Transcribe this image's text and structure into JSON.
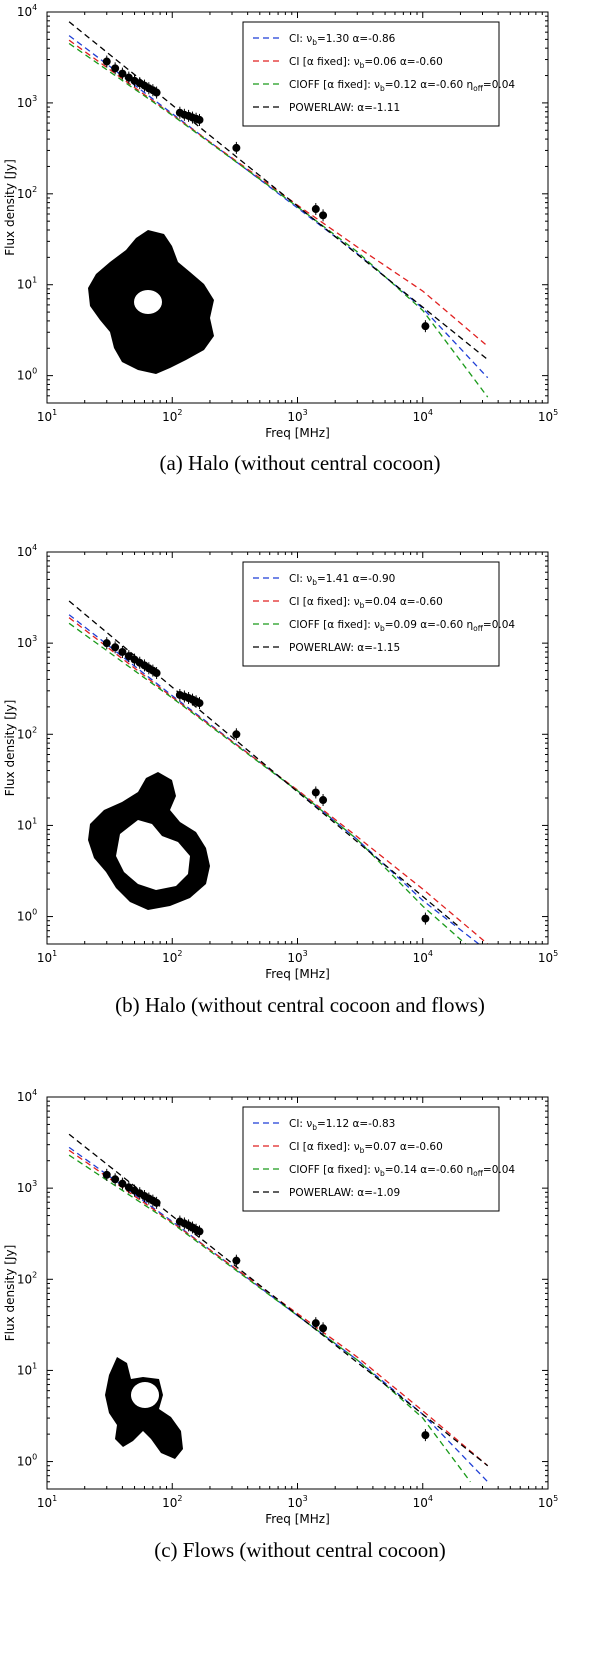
{
  "figure": {
    "panels": [
      {
        "id": "a",
        "caption": "(a)  Halo (without central cocoon)",
        "inset_shape": "halo-blob-with-hole"
      },
      {
        "id": "b",
        "caption": "(b)  Halo (without central cocoon and flows)",
        "inset_shape": "halo-ring-blob"
      },
      {
        "id": "c",
        "caption": "(c)  Flows (without central cocoon)",
        "inset_shape": "flows-blob"
      }
    ]
  },
  "colors": {
    "ci": "#1f3fd6",
    "ci_fixed": "#e02020",
    "cioff": "#1a9a1a",
    "powerlaw": "#000000",
    "points": "#000000",
    "inset": "#000000"
  },
  "chart_data": [
    {
      "type": "line",
      "title": "",
      "xlabel": "Freq [MHz]",
      "ylabel": "Flux density [Jy]",
      "xscale": "log",
      "yscale": "log",
      "xlim": [
        10,
        100000
      ],
      "ylim": [
        0.5,
        10000
      ],
      "x_ticks": [
        {
          "value": 10,
          "base": "10",
          "exp": "1"
        },
        {
          "value": 100,
          "base": "10",
          "exp": "2"
        },
        {
          "value": 1000,
          "base": "10",
          "exp": "3"
        },
        {
          "value": 10000,
          "base": "10",
          "exp": "4"
        },
        {
          "value": 100000,
          "base": "10",
          "exp": "5"
        }
      ],
      "y_ticks": [
        {
          "value": 1,
          "base": "10",
          "exp": "0"
        },
        {
          "value": 10,
          "base": "10",
          "exp": "1"
        },
        {
          "value": 100,
          "base": "10",
          "exp": "2"
        },
        {
          "value": 1000,
          "base": "10",
          "exp": "3"
        },
        {
          "value": 10000,
          "base": "10",
          "exp": "4"
        }
      ],
      "legend_position": "top-right",
      "series": [
        {
          "name": "CI: νb=1.30 α=-0.86",
          "label_parts": [
            "CI: ",
            "ν",
            "b",
            "=1.30 α=-0.86"
          ],
          "key": "ci",
          "model": "CI",
          "x": [
            15,
            100,
            1000,
            3000,
            10000,
            33000
          ],
          "y": [
            5500,
            760,
            70,
            22,
            5.5,
            0.95
          ]
        },
        {
          "name": "CI [α fixed]: νb=0.06 α=-0.60",
          "label_parts": [
            "CI [α fixed]: ",
            "ν",
            "b",
            "=0.06 α=-0.60"
          ],
          "key": "ci_fixed",
          "model": "CI",
          "x": [
            15,
            100,
            1000,
            3000,
            10000,
            33000
          ],
          "y": [
            4900,
            740,
            75,
            26,
            8.5,
            2.1
          ]
        },
        {
          "name": "CIOFF [α fixed]: νb=0.12 α=-0.60 ηoff=0.04",
          "label_parts": [
            "CIOFF [α fixed]: ",
            "ν",
            "b",
            "=0.12 α=-0.60 ",
            "η",
            "off",
            "=0.04"
          ],
          "key": "cioff",
          "model": "CIOFF",
          "x": [
            15,
            100,
            1000,
            3000,
            10000,
            33000
          ],
          "y": [
            4500,
            730,
            72,
            23,
            5.2,
            0.58
          ]
        },
        {
          "name": "POWERLAW: α=-1.11",
          "label_parts": [
            "POWERLAW: α=-1.11"
          ],
          "key": "powerlaw",
          "model": "PL",
          "x": [
            15,
            33000
          ],
          "y": [
            7800,
            1.5
          ]
        }
      ],
      "data_points": {
        "x": [
          30,
          35,
          40,
          45,
          50,
          55,
          60,
          65,
          70,
          75,
          115,
          125,
          135,
          145,
          155,
          165,
          325,
          1400,
          1600,
          10500
        ],
        "y": [
          2850,
          2400,
          2100,
          1900,
          1750,
          1650,
          1550,
          1450,
          1380,
          1300,
          780,
          740,
          720,
          690,
          670,
          650,
          320,
          68,
          58,
          3.5
        ]
      }
    },
    {
      "type": "line",
      "title": "",
      "xlabel": "Freq [MHz]",
      "ylabel": "Flux density [Jy]",
      "xscale": "log",
      "yscale": "log",
      "xlim": [
        10,
        100000
      ],
      "ylim": [
        0.5,
        10000
      ],
      "x_ticks": [
        {
          "value": 10,
          "base": "10",
          "exp": "1"
        },
        {
          "value": 100,
          "base": "10",
          "exp": "2"
        },
        {
          "value": 1000,
          "base": "10",
          "exp": "3"
        },
        {
          "value": 10000,
          "base": "10",
          "exp": "4"
        },
        {
          "value": 100000,
          "base": "10",
          "exp": "5"
        }
      ],
      "y_ticks": [
        {
          "value": 1,
          "base": "10",
          "exp": "0"
        },
        {
          "value": 10,
          "base": "10",
          "exp": "1"
        },
        {
          "value": 100,
          "base": "10",
          "exp": "2"
        },
        {
          "value": 1000,
          "base": "10",
          "exp": "3"
        },
        {
          "value": 10000,
          "base": "10",
          "exp": "4"
        }
      ],
      "legend_position": "top-right",
      "series": [
        {
          "name": "CI: νb=1.41 α=-0.90",
          "label_parts": [
            "CI: ",
            "ν",
            "b",
            "=1.41 α=-0.90"
          ],
          "key": "ci",
          "model": "CI",
          "x": [
            15,
            100,
            1000,
            3000,
            10000,
            28000
          ],
          "y": [
            2050,
            265,
            24,
            7,
            1.5,
            0.5
          ]
        },
        {
          "name": "CI [α fixed]: νb=0.04 α=-0.60",
          "label_parts": [
            "CI [α fixed]: ",
            "ν",
            "b",
            "=0.04 α=-0.60"
          ],
          "key": "ci_fixed",
          "model": "CI",
          "x": [
            15,
            100,
            1000,
            3000,
            10000,
            33000
          ],
          "y": [
            1900,
            255,
            24.5,
            7.5,
            2.0,
            0.5
          ]
        },
        {
          "name": "CIOFF [α fixed]: νb=0.09 α=-0.60 ηoff=0.04",
          "label_parts": [
            "CIOFF [α fixed]: ",
            "ν",
            "b",
            "=0.09 α=-0.60 ",
            "η",
            "off",
            "=0.04"
          ],
          "key": "cioff",
          "model": "CIOFF",
          "x": [
            15,
            100,
            1000,
            3000,
            10000,
            22000
          ],
          "y": [
            1650,
            250,
            24,
            7,
            1.3,
            0.5
          ]
        },
        {
          "name": "POWERLAW: α=-1.15",
          "label_parts": [
            "POWERLAW: α=-1.15"
          ],
          "key": "powerlaw",
          "model": "PL",
          "x": [
            15,
            20000
          ],
          "y": [
            2900,
            0.75
          ]
        }
      ],
      "data_points": {
        "x": [
          30,
          35,
          40,
          45,
          50,
          55,
          60,
          65,
          70,
          75,
          115,
          125,
          135,
          145,
          155,
          165,
          325,
          1400,
          1600,
          10500
        ],
        "y": [
          1000,
          900,
          800,
          720,
          660,
          610,
          570,
          530,
          500,
          470,
          270,
          260,
          250,
          240,
          230,
          220,
          100,
          23,
          19,
          0.95
        ]
      }
    },
    {
      "type": "line",
      "title": "",
      "xlabel": "Freq [MHz]",
      "ylabel": "Flux density [Jy]",
      "xscale": "log",
      "yscale": "log",
      "xlim": [
        10,
        100000
      ],
      "ylim": [
        0.5,
        10000
      ],
      "x_ticks": [
        {
          "value": 10,
          "base": "10",
          "exp": "1"
        },
        {
          "value": 100,
          "base": "10",
          "exp": "2"
        },
        {
          "value": 1000,
          "base": "10",
          "exp": "3"
        },
        {
          "value": 10000,
          "base": "10",
          "exp": "4"
        },
        {
          "value": 100000,
          "base": "10",
          "exp": "5"
        }
      ],
      "y_ticks": [
        {
          "value": 1,
          "base": "10",
          "exp": "0"
        },
        {
          "value": 10,
          "base": "10",
          "exp": "1"
        },
        {
          "value": 100,
          "base": "10",
          "exp": "2"
        },
        {
          "value": 1000,
          "base": "10",
          "exp": "3"
        },
        {
          "value": 10000,
          "base": "10",
          "exp": "4"
        }
      ],
      "legend_position": "top-right",
      "series": [
        {
          "name": "CI: νb=1.12 α=-0.83",
          "label_parts": [
            "CI: ",
            "ν",
            "b",
            "=1.12 α=-0.83"
          ],
          "key": "ci",
          "model": "CI",
          "x": [
            15,
            100,
            1000,
            3000,
            10000,
            33000
          ],
          "y": [
            2800,
            430,
            40,
            13,
            3.3,
            0.6
          ]
        },
        {
          "name": "CI [α fixed]: νb=0.07 α=-0.60",
          "label_parts": [
            "CI [α fixed]: ",
            "ν",
            "b",
            "=0.07 α=-0.60"
          ],
          "key": "ci_fixed",
          "model": "CI",
          "x": [
            15,
            100,
            1000,
            3000,
            10000,
            33000
          ],
          "y": [
            2600,
            420,
            42,
            14,
            3.6,
            0.9
          ]
        },
        {
          "name": "CIOFF [α fixed]: νb=0.14 α=-0.60 ηoff=0.04",
          "label_parts": [
            "CIOFF [α fixed]: ",
            "ν",
            "b",
            "=0.14 α=-0.60 ",
            "η",
            "off",
            "=0.04"
          ],
          "key": "cioff",
          "model": "CIOFF",
          "x": [
            15,
            100,
            1000,
            3000,
            10000,
            24000
          ],
          "y": [
            2300,
            410,
            40,
            13,
            3.0,
            0.6
          ]
        },
        {
          "name": "POWERLAW: α=-1.09",
          "label_parts": [
            "POWERLAW: α=-1.09"
          ],
          "key": "powerlaw",
          "model": "PL",
          "x": [
            15,
            33000
          ],
          "y": [
            3900,
            0.9
          ]
        }
      ],
      "data_points": {
        "x": [
          30,
          35,
          40,
          45,
          50,
          55,
          60,
          65,
          70,
          75,
          115,
          125,
          135,
          145,
          155,
          165,
          325,
          1400,
          1600,
          10500
        ],
        "y": [
          1400,
          1250,
          1120,
          1020,
          940,
          880,
          820,
          770,
          730,
          690,
          430,
          410,
          390,
          370,
          350,
          335,
          160,
          33,
          29,
          1.95
        ]
      }
    }
  ]
}
